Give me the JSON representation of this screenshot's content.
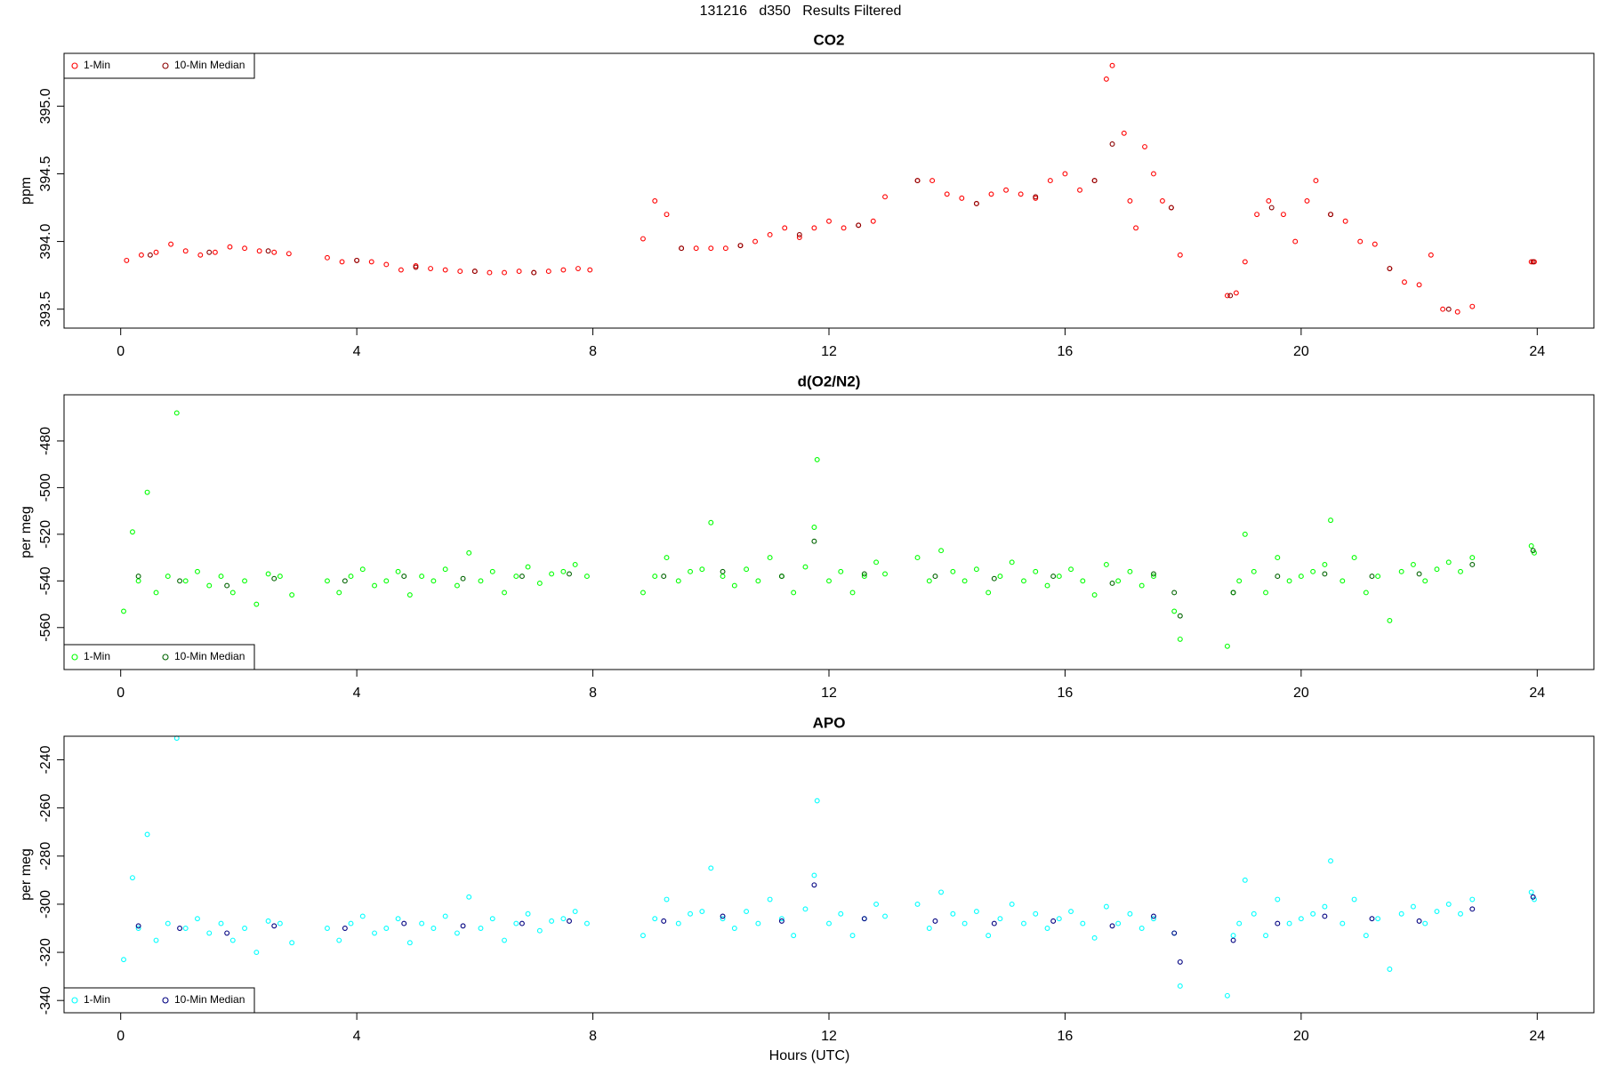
{
  "title": "131216   d350   Results Filtered",
  "xlabel": "Hours (UTC)",
  "chart_data": [
    {
      "type": "scatter",
      "title": "CO2",
      "ylabel": "ppm",
      "legend": "topleft",
      "xlim": [
        -0.96,
        24.96
      ],
      "xticks": [
        0,
        4,
        8,
        12,
        16,
        20,
        24
      ],
      "ylim": [
        393.36,
        395.39
      ],
      "yticks": [
        393.5,
        {
          "value": 394,
          "label": "394.0"
        },
        394.5,
        {
          "value": 395,
          "label": "395.0"
        }
      ],
      "series": [
        {
          "name": "1-Min",
          "color": "#ff0000",
          "x": [
            0.1,
            0.35,
            0.6,
            0.85,
            1.1,
            1.35,
            1.6,
            1.85,
            2.1,
            2.35,
            2.6,
            2.85,
            3.5,
            3.75,
            4.0,
            4.25,
            4.5,
            4.75,
            5.0,
            5.25,
            5.5,
            5.75,
            6.0,
            6.25,
            6.5,
            6.75,
            7.0,
            7.25,
            7.5,
            7.75,
            7.95,
            8.85,
            9.05,
            9.25,
            9.5,
            9.75,
            10.0,
            10.25,
            10.5,
            10.75,
            11.0,
            11.25,
            11.5,
            11.75,
            12.0,
            12.25,
            12.5,
            12.75,
            12.95,
            13.5,
            13.75,
            14.0,
            14.25,
            14.5,
            14.75,
            15.0,
            15.25,
            15.5,
            15.75,
            16.0,
            16.25,
            16.5,
            16.7,
            16.8,
            17.0,
            17.1,
            17.2,
            17.35,
            17.5,
            17.65,
            17.8,
            17.95,
            18.75,
            18.9,
            19.05,
            19.25,
            19.45,
            19.7,
            19.9,
            20.1,
            20.25,
            20.5,
            20.75,
            21.0,
            21.25,
            21.5,
            21.75,
            22.0,
            22.2,
            22.4,
            22.65,
            22.9,
            23.9,
            23.95
          ],
          "values": [
            393.86,
            393.9,
            393.92,
            393.98,
            393.93,
            393.9,
            393.92,
            393.96,
            393.95,
            393.93,
            393.92,
            393.91,
            393.88,
            393.85,
            393.86,
            393.85,
            393.83,
            393.79,
            393.82,
            393.8,
            393.79,
            393.78,
            393.78,
            393.77,
            393.77,
            393.78,
            393.77,
            393.78,
            393.79,
            393.8,
            393.79,
            394.02,
            394.3,
            394.2,
            393.95,
            393.95,
            393.95,
            393.95,
            393.97,
            394.0,
            394.05,
            394.1,
            394.03,
            394.1,
            394.15,
            394.1,
            394.12,
            394.15,
            394.33,
            394.45,
            394.45,
            394.35,
            394.32,
            394.28,
            394.35,
            394.38,
            394.35,
            394.32,
            394.45,
            394.5,
            394.38,
            394.45,
            395.2,
            395.3,
            394.8,
            394.3,
            394.1,
            394.7,
            394.5,
            394.3,
            394.25,
            393.9,
            393.6,
            393.62,
            393.85,
            394.2,
            394.3,
            394.2,
            394.0,
            394.3,
            394.45,
            394.2,
            394.15,
            394.0,
            393.98,
            393.8,
            393.7,
            393.68,
            393.9,
            393.5,
            393.48,
            393.52,
            393.85,
            393.85
          ]
        },
        {
          "name": "10-Min Median",
          "color": "#8b0000",
          "x": [
            0.5,
            1.5,
            2.5,
            4.0,
            5.0,
            6.0,
            7.0,
            9.5,
            10.5,
            11.5,
            12.5,
            13.5,
            14.5,
            15.5,
            16.5,
            16.8,
            17.8,
            18.8,
            19.5,
            20.5,
            21.5,
            22.5,
            23.93
          ],
          "values": [
            393.9,
            393.92,
            393.93,
            393.86,
            393.81,
            393.78,
            393.77,
            393.95,
            393.97,
            394.05,
            394.12,
            394.45,
            394.28,
            394.33,
            394.45,
            394.72,
            394.25,
            393.6,
            394.25,
            394.2,
            393.8,
            393.5,
            393.85
          ]
        }
      ]
    },
    {
      "type": "scatter",
      "title": "d(O2/N2)",
      "ylabel": "per meg",
      "legend": "bottomleft",
      "xlim": [
        -0.96,
        24.96
      ],
      "xticks": [
        0,
        4,
        8,
        12,
        16,
        20,
        24
      ],
      "ylim": [
        -578,
        -460.2
      ],
      "yticks": [
        -560,
        -540,
        -520,
        -500,
        -480
      ],
      "series": [
        {
          "name": "1-Min",
          "color": "#00ff00",
          "x": [
            0.05,
            0.2,
            0.3,
            0.45,
            0.6,
            0.8,
            0.95,
            1.1,
            1.3,
            1.5,
            1.7,
            1.9,
            2.1,
            2.3,
            2.5,
            2.7,
            2.9,
            3.5,
            3.7,
            3.9,
            4.1,
            4.3,
            4.5,
            4.7,
            4.9,
            5.1,
            5.3,
            5.5,
            5.7,
            5.9,
            6.1,
            6.3,
            6.5,
            6.7,
            6.9,
            7.1,
            7.3,
            7.5,
            7.7,
            7.9,
            8.85,
            9.05,
            9.25,
            9.45,
            9.65,
            9.85,
            10.0,
            10.2,
            10.4,
            10.6,
            10.8,
            11.0,
            11.2,
            11.4,
            11.6,
            11.75,
            11.8,
            12.0,
            12.2,
            12.4,
            12.6,
            12.8,
            12.95,
            13.5,
            13.7,
            13.9,
            14.1,
            14.3,
            14.5,
            14.7,
            14.9,
            15.1,
            15.3,
            15.5,
            15.7,
            15.9,
            16.1,
            16.3,
            16.5,
            16.7,
            16.9,
            17.1,
            17.3,
            17.5,
            17.85,
            17.95,
            18.75,
            18.85,
            18.95,
            19.05,
            19.2,
            19.4,
            19.6,
            19.8,
            20.0,
            20.2,
            20.4,
            20.5,
            20.7,
            20.9,
            21.1,
            21.3,
            21.5,
            21.7,
            21.9,
            22.1,
            22.3,
            22.5,
            22.7,
            22.9,
            23.9,
            23.95
          ],
          "values": [
            -553,
            -519,
            -540,
            -502,
            -545,
            -538,
            -468,
            -540,
            -536,
            -542,
            -538,
            -545,
            -540,
            -550,
            -537,
            -538,
            -546,
            -540,
            -545,
            -538,
            -535,
            -542,
            -540,
            -536,
            -546,
            -538,
            -540,
            -535,
            -542,
            -528,
            -540,
            -536,
            -545,
            -538,
            -534,
            -541,
            -537,
            -536,
            -533,
            -538,
            -545,
            -538,
            -530,
            -540,
            -536,
            -535,
            -515,
            -538,
            -542,
            -535,
            -540,
            -530,
            -538,
            -545,
            -534,
            -517,
            -488,
            -540,
            -536,
            -545,
            -538,
            -532,
            -537,
            -530,
            -540,
            -527,
            -536,
            -540,
            -535,
            -545,
            -538,
            -532,
            -540,
            -536,
            -542,
            -538,
            -535,
            -540,
            -546,
            -533,
            -540,
            -536,
            -542,
            -538,
            -553,
            -565,
            -568,
            -545,
            -540,
            -520,
            -536,
            -545,
            -530,
            -540,
            -538,
            -536,
            -533,
            -514,
            -540,
            -530,
            -545,
            -538,
            -557,
            -536,
            -533,
            -540,
            -535,
            -532,
            -536,
            -530,
            -525,
            -528
          ]
        },
        {
          "name": "10-Min Median",
          "color": "#006400",
          "x": [
            0.3,
            1.0,
            1.8,
            2.6,
            3.8,
            4.8,
            5.8,
            6.8,
            7.6,
            9.2,
            10.2,
            11.2,
            11.75,
            12.6,
            13.8,
            14.8,
            15.8,
            16.8,
            17.5,
            17.85,
            17.95,
            18.85,
            19.6,
            20.4,
            21.2,
            22.0,
            22.9,
            23.93
          ],
          "values": [
            -538,
            -540,
            -542,
            -539,
            -540,
            -538,
            -539,
            -538,
            -537,
            -538,
            -536,
            -538,
            -523,
            -537,
            -538,
            -539,
            -538,
            -541,
            -537,
            -545,
            -555,
            -545,
            -538,
            -537,
            -538,
            -537,
            -533,
            -527
          ]
        }
      ]
    },
    {
      "type": "scatter",
      "title": "APO",
      "ylabel": "per meg",
      "legend": "bottomleft",
      "xlim": [
        -0.96,
        24.96
      ],
      "xticks": [
        0,
        4,
        8,
        12,
        16,
        20,
        24
      ],
      "ylim": [
        -345.1,
        -230.2
      ],
      "yticks": [
        -340,
        -320,
        -300,
        -280,
        -260,
        -240
      ],
      "series": [
        {
          "name": "1-Min",
          "color": "#00ffff",
          "x": [
            0.05,
            0.2,
            0.3,
            0.45,
            0.6,
            0.8,
            0.95,
            1.1,
            1.3,
            1.5,
            1.7,
            1.9,
            2.1,
            2.3,
            2.5,
            2.7,
            2.9,
            3.5,
            3.7,
            3.9,
            4.1,
            4.3,
            4.5,
            4.7,
            4.9,
            5.1,
            5.3,
            5.5,
            5.7,
            5.9,
            6.1,
            6.3,
            6.5,
            6.7,
            6.9,
            7.1,
            7.3,
            7.5,
            7.7,
            7.9,
            8.85,
            9.05,
            9.25,
            9.45,
            9.65,
            9.85,
            10.0,
            10.2,
            10.4,
            10.6,
            10.8,
            11.0,
            11.2,
            11.4,
            11.6,
            11.75,
            11.8,
            12.0,
            12.2,
            12.4,
            12.6,
            12.8,
            12.95,
            13.5,
            13.7,
            13.9,
            14.1,
            14.3,
            14.5,
            14.7,
            14.9,
            15.1,
            15.3,
            15.5,
            15.7,
            15.9,
            16.1,
            16.3,
            16.5,
            16.7,
            16.9,
            17.1,
            17.3,
            17.5,
            17.85,
            17.95,
            18.75,
            18.85,
            18.95,
            19.05,
            19.2,
            19.4,
            19.6,
            19.8,
            20.0,
            20.2,
            20.4,
            20.5,
            20.7,
            20.9,
            21.1,
            21.3,
            21.5,
            21.7,
            21.9,
            22.1,
            22.3,
            22.5,
            22.7,
            22.9,
            23.9,
            23.95
          ],
          "values": [
            -323,
            -289,
            -310,
            -271,
            -315,
            -308,
            -231,
            -310,
            -306,
            -312,
            -308,
            -315,
            -310,
            -320,
            -307,
            -308,
            -316,
            -310,
            -315,
            -308,
            -305,
            -312,
            -310,
            -306,
            -316,
            -308,
            -310,
            -305,
            -312,
            -297,
            -310,
            -306,
            -315,
            -308,
            -304,
            -311,
            -307,
            -306,
            -303,
            -308,
            -313,
            -306,
            -298,
            -308,
            -304,
            -303,
            -285,
            -306,
            -310,
            -303,
            -308,
            -298,
            -306,
            -313,
            -302,
            -288,
            -257,
            -308,
            -304,
            -313,
            -306,
            -300,
            -305,
            -300,
            -310,
            -295,
            -304,
            -308,
            -303,
            -313,
            -306,
            -300,
            -308,
            -304,
            -310,
            -306,
            -303,
            -308,
            -314,
            -301,
            -308,
            -304,
            -310,
            -306,
            -312,
            -334,
            -338,
            -313,
            -308,
            -290,
            -304,
            -313,
            -298,
            -308,
            -306,
            -304,
            -301,
            -282,
            -308,
            -298,
            -313,
            -306,
            -327,
            -304,
            -301,
            -308,
            -303,
            -300,
            -304,
            -298,
            -295,
            -298
          ]
        },
        {
          "name": "10-Min Median",
          "color": "#000080",
          "x": [
            0.3,
            1.0,
            1.8,
            2.6,
            3.8,
            4.8,
            5.8,
            6.8,
            7.6,
            9.2,
            10.2,
            11.2,
            11.75,
            12.6,
            13.8,
            14.8,
            15.8,
            16.8,
            17.5,
            17.85,
            17.95,
            18.85,
            19.6,
            20.4,
            21.2,
            22.0,
            22.9,
            23.93
          ],
          "values": [
            -309,
            -310,
            -312,
            -309,
            -310,
            -308,
            -309,
            -308,
            -307,
            -307,
            -305,
            -307,
            -292,
            -306,
            -307,
            -308,
            -307,
            -309,
            -305,
            -312,
            -324,
            -315,
            -308,
            -305,
            -306,
            -307,
            -302,
            -297
          ]
        }
      ]
    }
  ]
}
